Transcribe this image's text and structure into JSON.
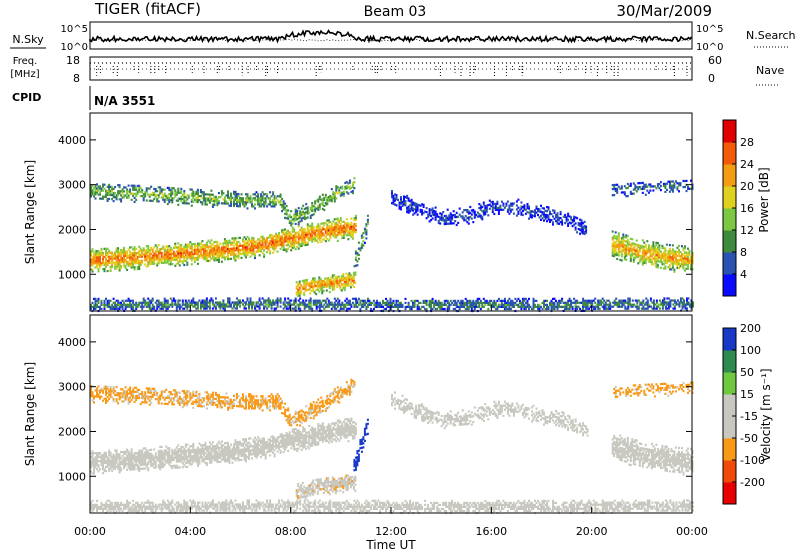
{
  "header": {
    "radar": "TIGER (fitACF)",
    "beam": "Beam 03",
    "date": "30/Mar/2009"
  },
  "noise_panel": {
    "left_label": "N.Sky",
    "right_label": "N.Search",
    "left_ticks": [
      "10^5",
      "10^0"
    ],
    "right_ticks": [
      "10^5",
      "10^0"
    ]
  },
  "freq_panel": {
    "left_label_1": "Freq.",
    "left_label_2": "[MHz]",
    "left_ticks": [
      "18",
      "8"
    ],
    "right_ticks": [
      "60",
      "0"
    ],
    "right_label": "Nave"
  },
  "cpid": {
    "label": "CPID",
    "value": "N/A 3551"
  },
  "x_axis": {
    "label": "Time UT",
    "ticks": [
      "00:00",
      "04:00",
      "08:00",
      "12:00",
      "16:00",
      "20:00",
      "00:00"
    ]
  },
  "colors": {
    "power": [
      "#0a0aff",
      "#2a52b0",
      "#3f8a3f",
      "#7cc843",
      "#e0d020",
      "#f39d12",
      "#f35a0a",
      "#e00000"
    ],
    "velocity": [
      "#e80000",
      "#f04a0a",
      "#f89a18",
      "#c8c8c0",
      "#c8c8c0",
      "#70c840",
      "#2e8a4e",
      "#1838c8"
    ]
  },
  "chart_data": [
    {
      "type": "heatmap",
      "panel": "power",
      "xlabel": "Time UT",
      "ylabel": "Slant Range [km]",
      "xlim": [
        0,
        24
      ],
      "ylim": [
        180,
        4600
      ],
      "yticks": [
        "1000",
        "2000",
        "3000",
        "4000"
      ],
      "colorbar": {
        "label": "Power [dB]",
        "ticks": [
          "4",
          "8",
          "12",
          "16",
          "20",
          "24",
          "28"
        ],
        "range": [
          0,
          32
        ]
      },
      "bands": [
        {
          "t": [
            0,
            1,
            2,
            3,
            4,
            5,
            6,
            7,
            8,
            9,
            10,
            10.6
          ],
          "r": [
            1300,
            1320,
            1360,
            1410,
            1460,
            1510,
            1560,
            1640,
            1780,
            1900,
            2000,
            2050
          ],
          "w": 260,
          "p": 25,
          "d": 0.9
        },
        {
          "t": [
            0,
            2,
            4,
            6,
            7.5,
            8,
            9,
            10,
            10.5
          ],
          "r": [
            2820,
            2780,
            2700,
            2640,
            2640,
            2200,
            2500,
            2850,
            3000
          ],
          "w": 190,
          "p": 14,
          "d": 0.65
        },
        {
          "t": [
            8.2,
            9,
            10,
            10.6
          ],
          "r": [
            640,
            740,
            820,
            860
          ],
          "w": 200,
          "p": 24,
          "d": 0.85
        },
        {
          "t": [
            10.5,
            11.1
          ],
          "r": [
            1200,
            2200
          ],
          "w": 220,
          "p": 12,
          "d": 0.6
        },
        {
          "t": [
            12,
            13,
            14,
            15,
            16,
            17,
            18,
            19,
            19.8
          ],
          "r": [
            2700,
            2450,
            2230,
            2280,
            2460,
            2470,
            2320,
            2200,
            1980
          ],
          "w": 180,
          "p": 5,
          "d": 0.6
        },
        {
          "t": [
            20.8,
            22,
            23,
            24
          ],
          "r": [
            1650,
            1450,
            1350,
            1300
          ],
          "w": 300,
          "p": 22,
          "d": 0.85
        },
        {
          "t": [
            20.8,
            22,
            24
          ],
          "r": [
            2850,
            2900,
            2950
          ],
          "w": 150,
          "p": 8,
          "d": 0.45
        },
        {
          "t": [
            0,
            6,
            12,
            18,
            24
          ],
          "r": [
            300,
            310,
            300,
            300,
            310
          ],
          "w": 140,
          "p": 9,
          "d": 0.75
        }
      ]
    },
    {
      "type": "heatmap",
      "panel": "velocity",
      "xlabel": "Time UT",
      "ylabel": "Slant Range [km]",
      "xlim": [
        0,
        24
      ],
      "ylim": [
        180,
        4600
      ],
      "yticks": [
        "1000",
        "2000",
        "3000",
        "4000"
      ],
      "colorbar": {
        "label": "Velocity [m s⁻¹]",
        "ticks": [
          "-200",
          "-100",
          "-50",
          "-15",
          "15",
          "50",
          "100",
          "200"
        ],
        "range": [
          -250,
          250
        ]
      },
      "bands": [
        {
          "t": [
            0,
            1,
            2,
            3,
            4,
            5,
            6,
            7,
            8,
            9,
            10,
            10.6
          ],
          "r": [
            1300,
            1320,
            1360,
            1410,
            1460,
            1510,
            1560,
            1640,
            1780,
            1900,
            2000,
            2050
          ],
          "w": 260,
          "v": 0,
          "d": 0.9
        },
        {
          "t": [
            0,
            2,
            4,
            6,
            7.5,
            8,
            9,
            10,
            10.5
          ],
          "r": [
            2820,
            2780,
            2700,
            2640,
            2640,
            2200,
            2500,
            2850,
            3000
          ],
          "w": 190,
          "v": -80,
          "d": 0.65
        },
        {
          "t": [
            8.2,
            9,
            10,
            10.6
          ],
          "r": [
            640,
            740,
            820,
            860
          ],
          "w": 200,
          "v": -40,
          "d": 0.85
        },
        {
          "t": [
            10.5,
            11.1
          ],
          "r": [
            1200,
            2200
          ],
          "w": 220,
          "v": 220,
          "d": 0.6
        },
        {
          "t": [
            12,
            13,
            14,
            15,
            16,
            17,
            18,
            19,
            19.8
          ],
          "r": [
            2700,
            2450,
            2230,
            2280,
            2460,
            2470,
            2320,
            2200,
            1980
          ],
          "w": 180,
          "v": 0,
          "d": 0.6
        },
        {
          "t": [
            20.8,
            22,
            23,
            24
          ],
          "r": [
            1650,
            1450,
            1350,
            1300
          ],
          "w": 300,
          "v": 0,
          "d": 0.85
        },
        {
          "t": [
            20.8,
            22,
            24
          ],
          "r": [
            2850,
            2900,
            2950
          ],
          "w": 150,
          "v": -80,
          "d": 0.45
        },
        {
          "t": [
            0,
            6,
            12,
            18,
            24
          ],
          "r": [
            300,
            310,
            300,
            300,
            310
          ],
          "w": 140,
          "v": -20,
          "d": 0.75
        }
      ]
    }
  ]
}
